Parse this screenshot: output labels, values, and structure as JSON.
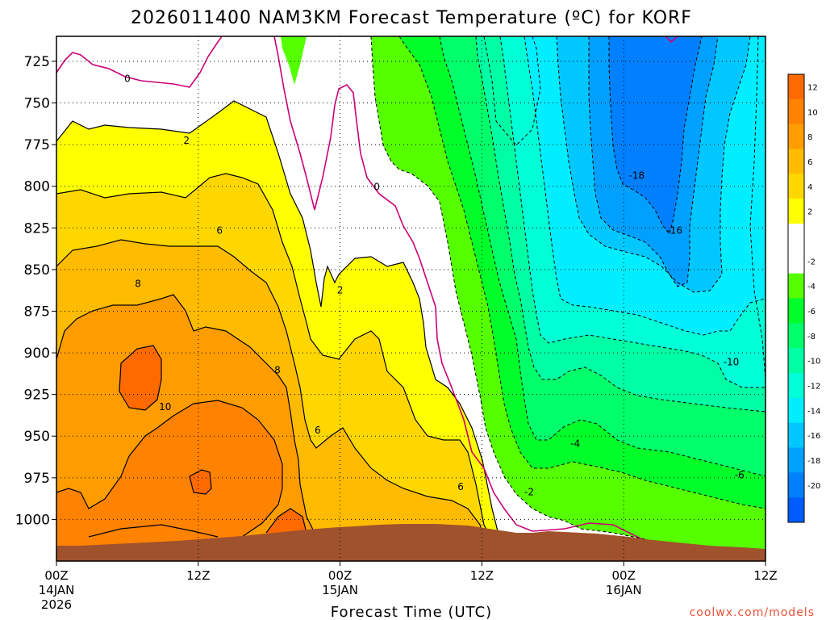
{
  "chart_data": {
    "type": "contour",
    "title": "2026011400 NAM3KM Forecast Temperature (ºC) for KORF",
    "xlabel": "Forecast Time (UTC)",
    "ylabel": "",
    "y_axis": {
      "ticks": [
        725,
        750,
        775,
        800,
        825,
        850,
        875,
        900,
        925,
        950,
        975,
        1000
      ],
      "range": [
        710,
        1025
      ],
      "units": "hPa",
      "inverted": true
    },
    "x_axis": {
      "range_hours": [
        0,
        60
      ],
      "ticks": [
        {
          "hour": 0,
          "label": "00Z",
          "sub": "14JAN",
          "sub2": "2026"
        },
        {
          "hour": 12,
          "label": "12Z",
          "sub": "",
          "sub2": ""
        },
        {
          "hour": 24,
          "label": "00Z",
          "sub": "15JAN",
          "sub2": ""
        },
        {
          "hour": 36,
          "label": "12Z",
          "sub": "",
          "sub2": ""
        },
        {
          "hour": 48,
          "label": "00Z",
          "sub": "16JAN",
          "sub2": ""
        },
        {
          "hour": 60,
          "label": "12Z",
          "sub": "",
          "sub2": ""
        }
      ]
    },
    "grid": true,
    "colorbar": {
      "position": "right",
      "levels": [
        {
          "from": 12,
          "to": 14,
          "color": "#ff6a00",
          "label": "12"
        },
        {
          "from": 10,
          "to": 12,
          "color": "#ff8200",
          "label": "10"
        },
        {
          "from": 8,
          "to": 10,
          "color": "#ff9c00",
          "label": "8"
        },
        {
          "from": 6,
          "to": 8,
          "color": "#ffbb00",
          "label": "6"
        },
        {
          "from": 4,
          "to": 6,
          "color": "#ffd700",
          "label": "4"
        },
        {
          "from": 2,
          "to": 4,
          "color": "#ffff00",
          "label": "2"
        },
        {
          "from": 0,
          "to": 2,
          "color": "#ffffff",
          "label": ""
        },
        {
          "from": -2,
          "to": 0,
          "color": "#ffffff",
          "label": "-2"
        },
        {
          "from": -4,
          "to": -2,
          "color": "#55ff00",
          "label": "-4"
        },
        {
          "from": -6,
          "to": -4,
          "color": "#00ff2a",
          "label": "-6"
        },
        {
          "from": -8,
          "to": -6,
          "color": "#00ff6a",
          "label": "-8"
        },
        {
          "from": -10,
          "to": -8,
          "color": "#00ffa5",
          "label": "-10"
        },
        {
          "from": -12,
          "to": -10,
          "color": "#00ffd7",
          "label": "-12"
        },
        {
          "from": -14,
          "to": -12,
          "color": "#00eeff",
          "label": "-14"
        },
        {
          "from": -16,
          "to": -14,
          "color": "#00c8ff",
          "label": "-16"
        },
        {
          "from": -18,
          "to": -16,
          "color": "#00a0ff",
          "label": "-18"
        },
        {
          "from": -20,
          "to": -18,
          "color": "#0080ff",
          "label": "-20"
        },
        {
          "from": -22,
          "to": -20,
          "color": "#005cff",
          "label": ""
        }
      ]
    },
    "contour_labels": [
      {
        "text": "0",
        "hour": 6.0,
        "p": 735
      },
      {
        "text": "2",
        "hour": 11.0,
        "p": 772
      },
      {
        "text": "0",
        "hour": 27.1,
        "p": 800
      },
      {
        "text": "6",
        "hour": 13.8,
        "p": 826
      },
      {
        "text": "8",
        "hour": 6.9,
        "p": 858
      },
      {
        "text": "2",
        "hour": 24.0,
        "p": 862
      },
      {
        "text": "10",
        "hour": 9.2,
        "p": 932
      },
      {
        "text": "8",
        "hour": 18.7,
        "p": 910
      },
      {
        "text": "6",
        "hour": 22.1,
        "p": 946
      },
      {
        "text": "6",
        "hour": 34.2,
        "p": 980
      },
      {
        "text": "-2",
        "hour": 40.0,
        "p": 983
      },
      {
        "text": "-4",
        "hour": 43.9,
        "p": 954
      },
      {
        "text": "-18",
        "hour": 49.1,
        "p": 793
      },
      {
        "text": "-16",
        "hour": 52.3,
        "p": 826
      },
      {
        "text": "-10",
        "hour": 57.1,
        "p": 905
      },
      {
        "text": "-6",
        "hour": 57.8,
        "p": 973
      }
    ],
    "terrain": {
      "color": "#a0522d",
      "surface_pressure_range": [
        1004,
        1013
      ]
    }
  },
  "credit": "coolwx.com/models"
}
